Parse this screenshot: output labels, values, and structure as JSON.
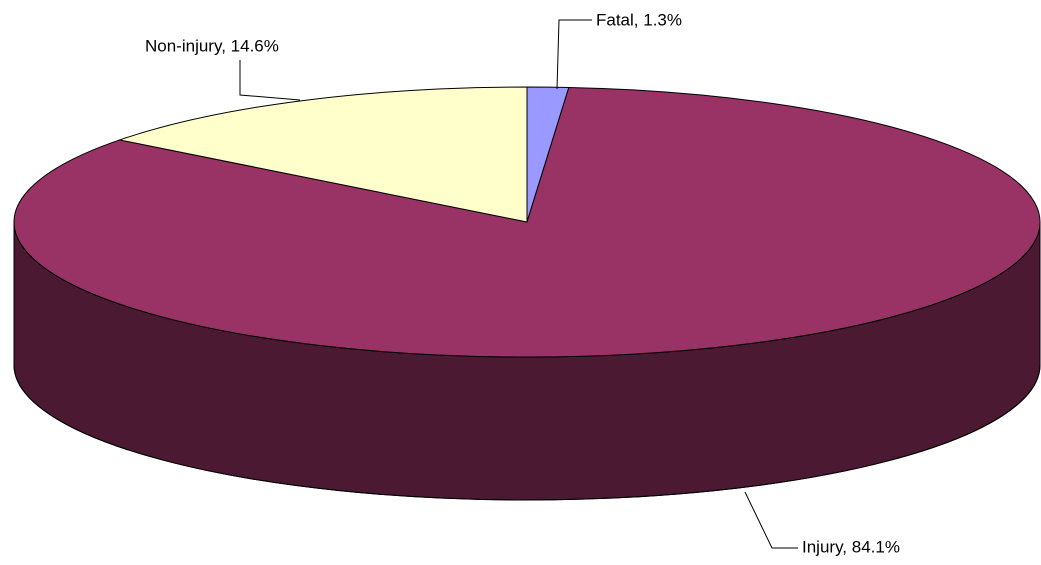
{
  "chart_data": {
    "type": "pie3d",
    "categories": [
      "Fatal",
      "Injury",
      "Non-injury"
    ],
    "values": [
      1.3,
      84.1,
      14.6
    ],
    "value_labels": [
      "Fatal, 1.3%",
      "Injury, 84.1%",
      "Non-injury, 14.6%"
    ],
    "colors": [
      "#9999ff",
      "#993366",
      "#ffffcc"
    ]
  }
}
